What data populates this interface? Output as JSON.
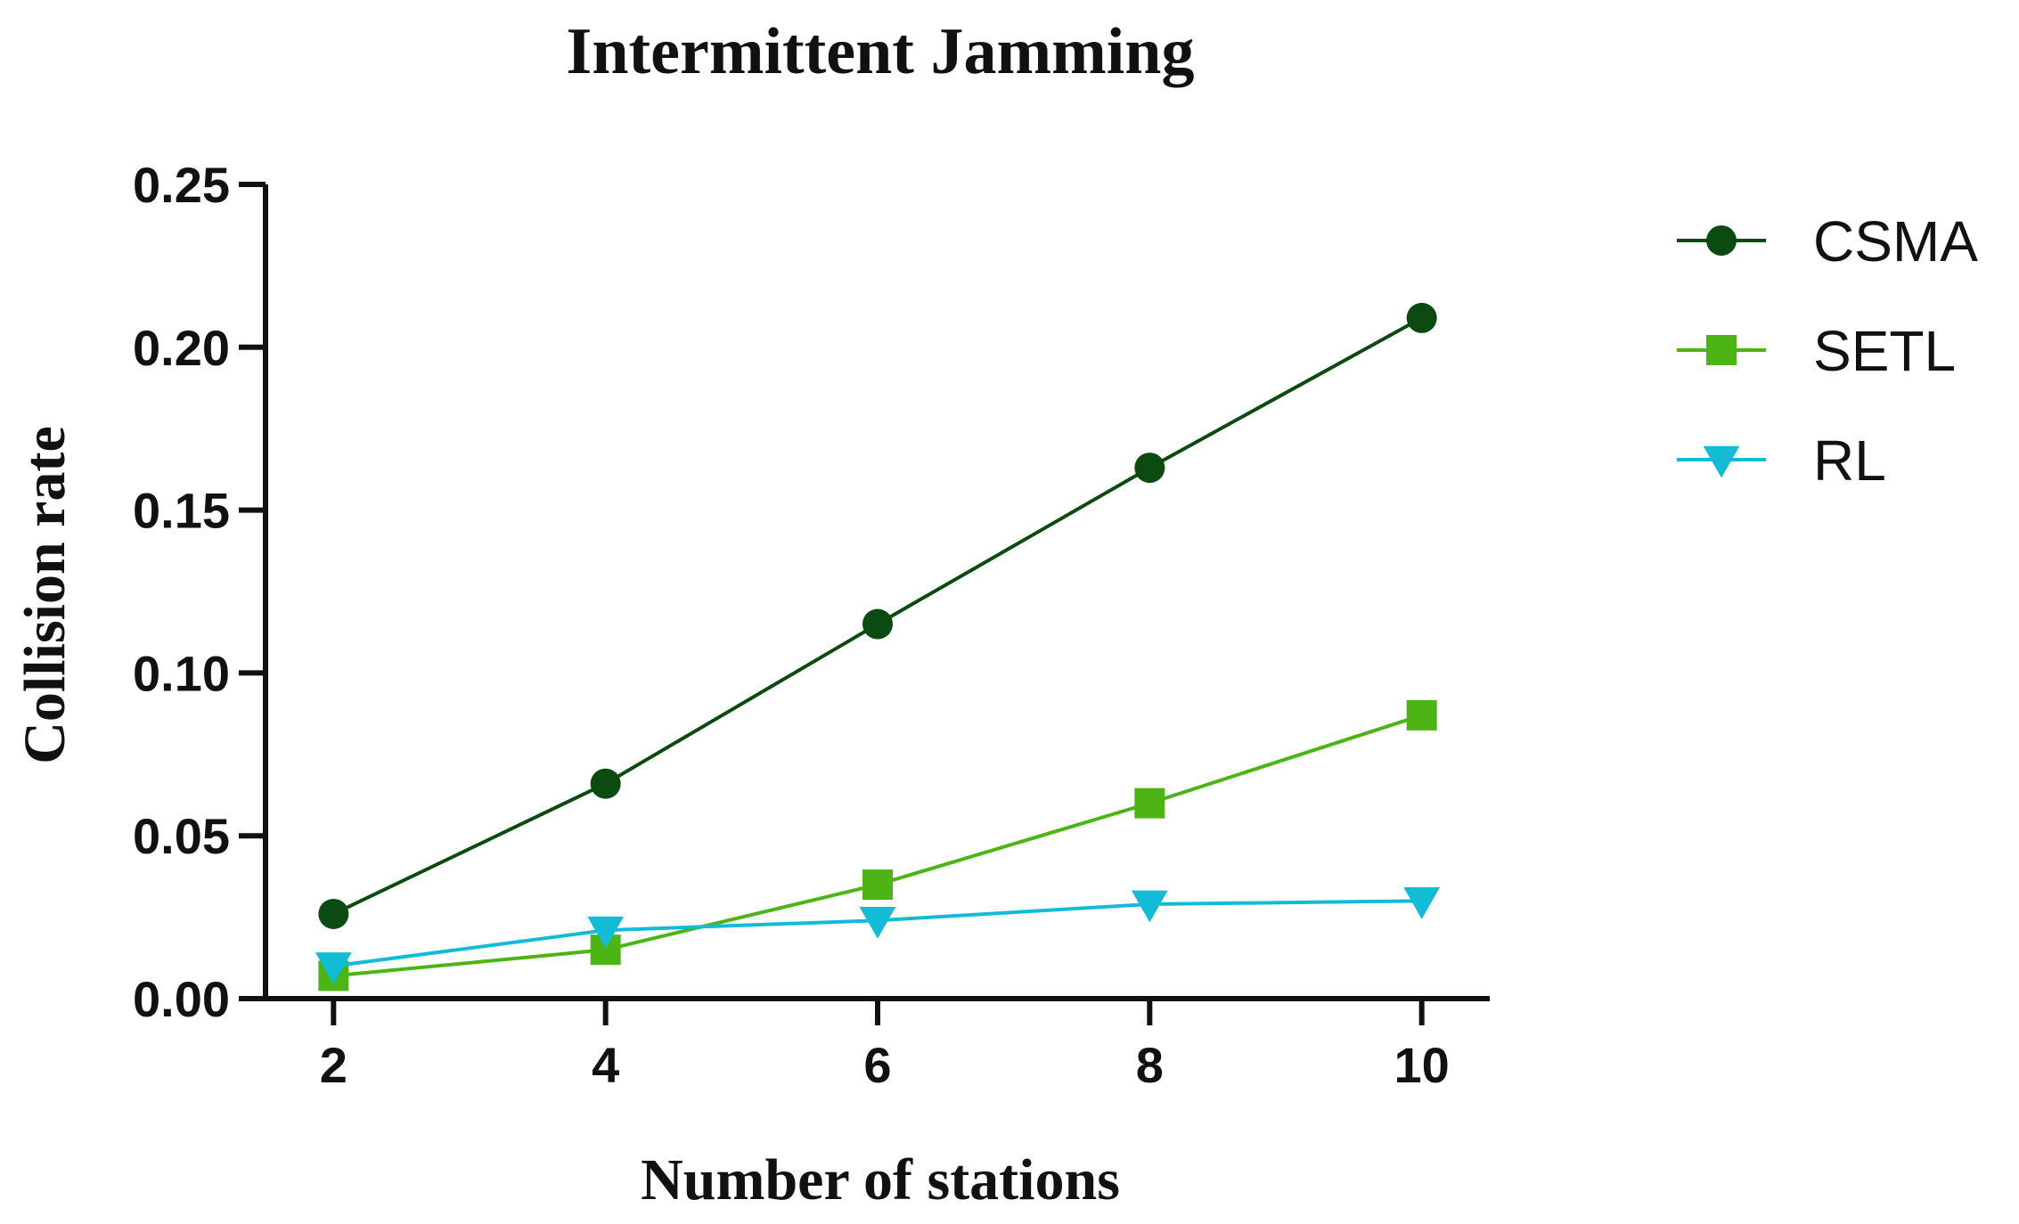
{
  "chart_data": {
    "type": "line",
    "title": "Intermittent Jamming",
    "xlabel": "Number of stations",
    "ylabel": "Collision rate",
    "x": [
      2,
      4,
      6,
      8,
      10
    ],
    "x_ticks": [
      "2",
      "4",
      "6",
      "8",
      "10"
    ],
    "y_ticks": [
      "0.00",
      "0.05",
      "0.10",
      "0.15",
      "0.20",
      "0.25"
    ],
    "y_tick_values": [
      0,
      0.05,
      0.1,
      0.15,
      0.2,
      0.25
    ],
    "xlim": [
      1.5,
      10.5
    ],
    "ylim": [
      0,
      0.25
    ],
    "grid": false,
    "legend_position": "top-right, outside plot",
    "series": [
      {
        "name": "CSMA",
        "values": [
          0.026,
          0.066,
          0.115,
          0.163,
          0.209
        ],
        "color": "#0b4a10",
        "marker": "circle"
      },
      {
        "name": "SETL",
        "values": [
          0.007,
          0.015,
          0.035,
          0.06,
          0.087
        ],
        "color": "#4cb515",
        "marker": "square"
      },
      {
        "name": "RL",
        "values": [
          0.01,
          0.021,
          0.024,
          0.029,
          0.03
        ],
        "color": "#13bcd6",
        "marker": "triangle-down"
      }
    ]
  }
}
